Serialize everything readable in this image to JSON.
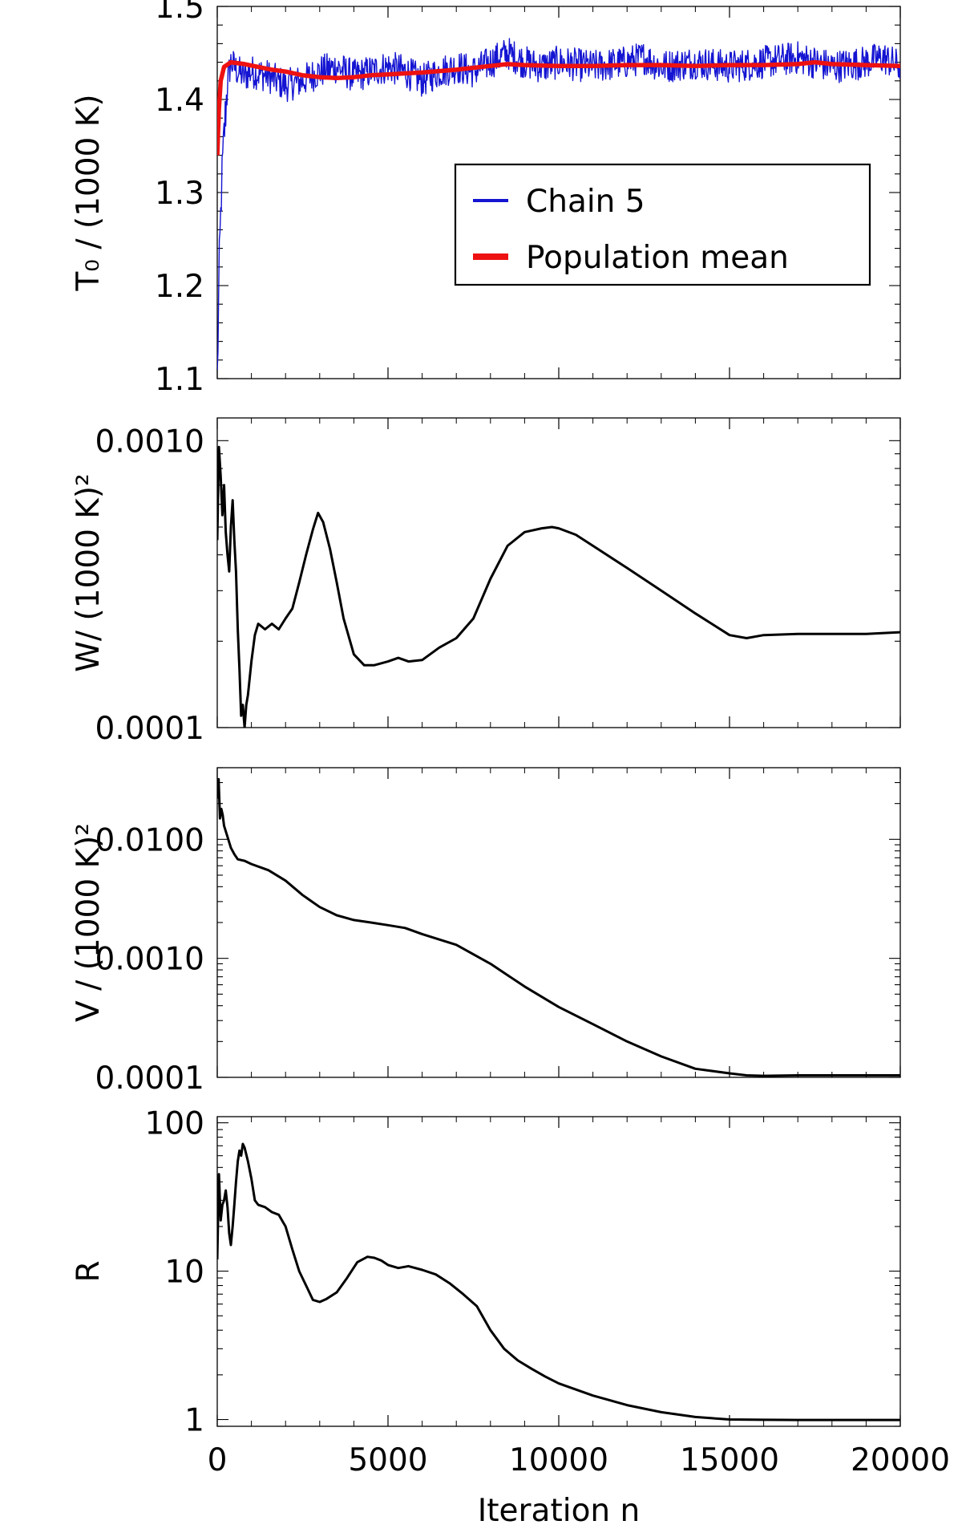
{
  "chart_data": [
    {
      "type": "line",
      "ylabel": "T₀ / (1000 K)",
      "xlim": [
        0,
        20000
      ],
      "ylim": [
        1.1,
        1.5
      ],
      "yscale": "linear",
      "yticks": [
        1.1,
        1.2,
        1.3,
        1.4,
        1.5
      ],
      "ytick_labels": [
        "1.1",
        "1.2",
        "1.3",
        "1.4",
        "1.5"
      ],
      "legend_position": "upper-right",
      "series": [
        {
          "name": "Chain 5",
          "color": "#1414d2",
          "noisy": true,
          "x": [
            0,
            60,
            120,
            200,
            300,
            400,
            600,
            800,
            1000,
            1500,
            2000,
            2500,
            3000,
            3500,
            4000,
            4500,
            5000,
            5500,
            6000,
            6500,
            7000,
            7500,
            8000,
            8500,
            9000,
            9500,
            10000,
            11000,
            12000,
            12500,
            13000,
            14000,
            15000,
            16000,
            17000,
            17500,
            18000,
            19000,
            19500,
            20000
          ],
          "y": [
            1.1,
            1.22,
            1.3,
            1.36,
            1.42,
            1.44,
            1.43,
            1.425,
            1.43,
            1.425,
            1.415,
            1.42,
            1.43,
            1.435,
            1.425,
            1.43,
            1.435,
            1.43,
            1.42,
            1.43,
            1.435,
            1.43,
            1.44,
            1.45,
            1.44,
            1.435,
            1.44,
            1.435,
            1.44,
            1.445,
            1.435,
            1.44,
            1.435,
            1.44,
            1.445,
            1.44,
            1.435,
            1.44,
            1.445,
            1.435
          ]
        },
        {
          "name": "Population mean",
          "color": "#ee1111",
          "x": [
            0,
            50,
            100,
            200,
            400,
            800,
            1200,
            1600,
            2000,
            2500,
            3000,
            3500,
            4000,
            4500,
            5000,
            5500,
            6000,
            7000,
            8000,
            8500,
            9000,
            10000,
            11000,
            12000,
            13000,
            14000,
            15000,
            16000,
            17000,
            17500,
            18000,
            19000,
            20000
          ],
          "y": [
            1.34,
            1.39,
            1.42,
            1.435,
            1.44,
            1.438,
            1.435,
            1.432,
            1.43,
            1.426,
            1.424,
            1.423,
            1.424,
            1.426,
            1.427,
            1.428,
            1.429,
            1.432,
            1.436,
            1.438,
            1.437,
            1.436,
            1.436,
            1.437,
            1.437,
            1.436,
            1.437,
            1.437,
            1.438,
            1.44,
            1.438,
            1.437,
            1.436
          ]
        }
      ]
    },
    {
      "type": "line",
      "ylabel": "W/ (1000 K)²",
      "xlim": [
        0,
        20000
      ],
      "ylim": [
        0.0001,
        0.0012
      ],
      "yscale": "log",
      "yticks": [
        0.0001,
        0.001
      ],
      "ytick_labels": [
        "0.0001",
        "0.0010"
      ],
      "series": [
        {
          "name": "",
          "color": "#000000",
          "x": [
            0,
            50,
            100,
            150,
            200,
            250,
            300,
            350,
            400,
            450,
            500,
            550,
            600,
            650,
            700,
            750,
            800,
            850,
            900,
            1000,
            1100,
            1200,
            1400,
            1600,
            1800,
            2000,
            2200,
            2400,
            2600,
            2800,
            2950,
            3100,
            3300,
            3500,
            3700,
            4000,
            4300,
            4600,
            5000,
            5300,
            5600,
            6000,
            6500,
            7000,
            7500,
            8000,
            8500,
            9000,
            9500,
            9800,
            10000,
            10500,
            11000,
            12000,
            13000,
            14000,
            15000,
            15500,
            16000,
            17000,
            18000,
            19000,
            20000
          ],
          "y": [
            0.00045,
            0.00095,
            0.00075,
            0.00055,
            0.0007,
            0.00048,
            0.0004,
            0.00035,
            0.0005,
            0.00062,
            0.00045,
            0.00035,
            0.00022,
            0.00016,
            0.00011,
            0.00012,
            0.0001,
            0.00012,
            0.00013,
            0.00017,
            0.00021,
            0.00023,
            0.00022,
            0.00023,
            0.00022,
            0.00024,
            0.00026,
            0.00032,
            0.0004,
            0.00049,
            0.00056,
            0.00052,
            0.00042,
            0.00032,
            0.00024,
            0.00018,
            0.000165,
            0.000165,
            0.00017,
            0.000175,
            0.00017,
            0.000172,
            0.00019,
            0.000205,
            0.00024,
            0.00033,
            0.00043,
            0.00048,
            0.000495,
            0.0005,
            0.000495,
            0.00047,
            0.00043,
            0.00036,
            0.0003,
            0.00025,
            0.00021,
            0.000205,
            0.00021,
            0.000212,
            0.000212,
            0.000212,
            0.000215
          ]
        }
      ]
    },
    {
      "type": "line",
      "ylabel": "V / (1000 K)²",
      "xlim": [
        0,
        20000
      ],
      "ylim": [
        0.0001,
        0.04
      ],
      "yscale": "log",
      "yticks": [
        0.0001,
        0.001,
        0.01
      ],
      "ytick_labels": [
        "0.0001",
        "0.0010",
        "0.0100"
      ],
      "series": [
        {
          "name": "",
          "color": "#000000",
          "x": [
            0,
            40,
            80,
            120,
            160,
            200,
            300,
            400,
            500,
            600,
            800,
            1000,
            1500,
            2000,
            2500,
            3000,
            3500,
            4000,
            4500,
            5000,
            5500,
            6000,
            7000,
            8000,
            9000,
            10000,
            11000,
            12000,
            13000,
            14000,
            15000,
            15500,
            16000,
            17000,
            18000,
            19000,
            20000
          ],
          "y": [
            0.022,
            0.032,
            0.015,
            0.018,
            0.016,
            0.013,
            0.0105,
            0.0085,
            0.0075,
            0.0068,
            0.0066,
            0.0062,
            0.0055,
            0.0045,
            0.0034,
            0.0027,
            0.0023,
            0.0021,
            0.002,
            0.0019,
            0.0018,
            0.0016,
            0.0013,
            0.0009,
            0.00058,
            0.00039,
            0.00028,
            0.0002,
            0.00015,
            0.000118,
            0.000108,
            0.000104,
            0.000103,
            0.000104,
            0.000104,
            0.000104,
            0.000104
          ]
        }
      ]
    },
    {
      "type": "line",
      "ylabel": "R",
      "xlabel": "Iteration n",
      "xlim": [
        0,
        20000
      ],
      "ylim": [
        0.9,
        110
      ],
      "yscale": "log",
      "xticks": [
        0,
        5000,
        10000,
        15000,
        20000
      ],
      "xtick_labels": [
        "0",
        "5000",
        "10000",
        "15000",
        "20000"
      ],
      "yticks": [
        1,
        10,
        100
      ],
      "ytick_labels": [
        "1",
        "10",
        "100"
      ],
      "series": [
        {
          "name": "",
          "color": "#000000",
          "x": [
            0,
            50,
            100,
            150,
            200,
            250,
            300,
            350,
            400,
            450,
            500,
            550,
            600,
            650,
            700,
            750,
            800,
            900,
            1000,
            1100,
            1200,
            1400,
            1600,
            1800,
            2000,
            2200,
            2400,
            2600,
            2800,
            3000,
            3200,
            3500,
            3800,
            4100,
            4400,
            4600,
            4800,
            5000,
            5300,
            5600,
            6000,
            6400,
            6800,
            7200,
            7600,
            8000,
            8400,
            8800,
            9200,
            9600,
            10000,
            11000,
            12000,
            13000,
            14000,
            15000,
            16000,
            17000,
            18000,
            19000,
            20000
          ],
          "y": [
            12,
            45,
            22,
            28,
            30,
            35,
            27,
            18,
            15,
            20,
            28,
            40,
            55,
            65,
            60,
            72,
            68,
            55,
            42,
            30,
            28,
            27,
            25,
            24,
            20,
            14,
            10,
            8,
            6.4,
            6.2,
            6.5,
            7.2,
            9.0,
            11.5,
            12.5,
            12.3,
            11.8,
            11.0,
            10.5,
            10.8,
            10.2,
            9.5,
            8.3,
            7.0,
            5.8,
            4.0,
            3.0,
            2.5,
            2.2,
            1.95,
            1.75,
            1.45,
            1.25,
            1.12,
            1.04,
            1.0,
            0.995,
            0.993,
            0.993,
            0.993,
            0.993
          ]
        }
      ]
    }
  ]
}
